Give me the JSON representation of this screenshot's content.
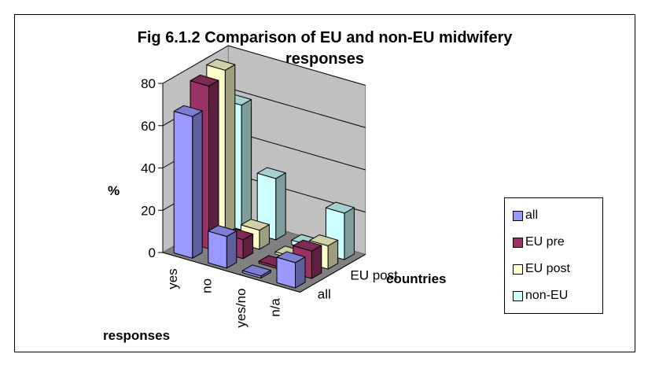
{
  "chart_data": {
    "type": "bar",
    "variant": "3d-column",
    "title": "Fig 6.1.2 Comparison of EU and non-EU midwifery responses",
    "title_lines": [
      "Fig 6.1.2 Comparison of EU and non-EU midwifery",
      "responses"
    ],
    "categories": [
      "yes",
      "no",
      "yes/no",
      "n/a"
    ],
    "depth_labels": [
      "all",
      "EU post"
    ],
    "series": [
      {
        "name": "all",
        "color": "#9999ff",
        "values": [
          67,
          15,
          1,
          12
        ]
      },
      {
        "name": "EU pre",
        "color": "#993366",
        "values": [
          77,
          9,
          1,
          13
        ]
      },
      {
        "name": "EU post",
        "color": "#ffffcc",
        "values": [
          80,
          9,
          1,
          11
        ]
      },
      {
        "name": "non-EU",
        "color": "#ccffff",
        "values": [
          59,
          29,
          2,
          22
        ]
      }
    ],
    "ylabel": "%",
    "xlabel": "responses",
    "zlabel": "countries",
    "yticks": [
      0,
      20,
      40,
      60,
      80
    ],
    "ylim": [
      0,
      80
    ],
    "grid": true,
    "legend_position": "right"
  }
}
